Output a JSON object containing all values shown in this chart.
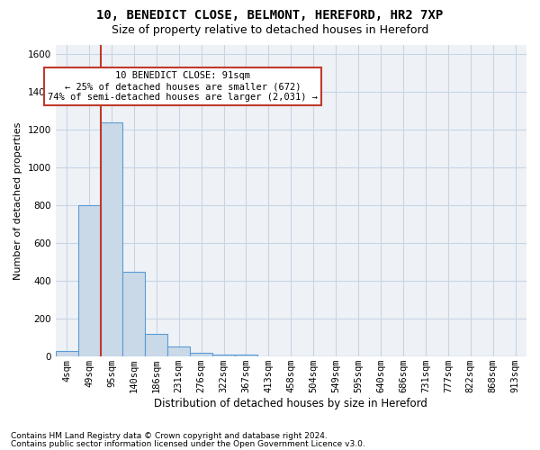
{
  "title1": "10, BENEDICT CLOSE, BELMONT, HEREFORD, HR2 7XP",
  "title2": "Size of property relative to detached houses in Hereford",
  "xlabel": "Distribution of detached houses by size in Hereford",
  "ylabel": "Number of detached properties",
  "categories": [
    "4sqm",
    "49sqm",
    "95sqm",
    "140sqm",
    "186sqm",
    "231sqm",
    "276sqm",
    "322sqm",
    "367sqm",
    "413sqm",
    "458sqm",
    "504sqm",
    "549sqm",
    "595sqm",
    "640sqm",
    "686sqm",
    "731sqm",
    "777sqm",
    "822sqm",
    "868sqm",
    "913sqm"
  ],
  "values": [
    30,
    800,
    1240,
    450,
    120,
    55,
    20,
    12,
    8,
    0,
    0,
    0,
    0,
    0,
    0,
    0,
    0,
    0,
    0,
    0,
    0
  ],
  "bar_color": "#c9d9e8",
  "bar_edge_color": "#5b9bd5",
  "vline_color": "#c0392b",
  "annotation_line1": "10 BENEDICT CLOSE: 91sqm",
  "annotation_line2": "← 25% of detached houses are smaller (672)",
  "annotation_line3": "74% of semi-detached houses are larger (2,031) →",
  "annotation_box_color": "white",
  "annotation_box_edge_color": "#c0392b",
  "ylim": [
    0,
    1650
  ],
  "yticks": [
    0,
    200,
    400,
    600,
    800,
    1000,
    1200,
    1400,
    1600
  ],
  "grid_color": "#c8d4e3",
  "bg_color": "#eef2f7",
  "footer1": "Contains HM Land Registry data © Crown copyright and database right 2024.",
  "footer2": "Contains public sector information licensed under the Open Government Licence v3.0.",
  "title1_fontsize": 10,
  "title2_fontsize": 9,
  "xlabel_fontsize": 8.5,
  "ylabel_fontsize": 8,
  "tick_fontsize": 7.5,
  "annotation_fontsize": 7.5,
  "footer_fontsize": 6.5
}
